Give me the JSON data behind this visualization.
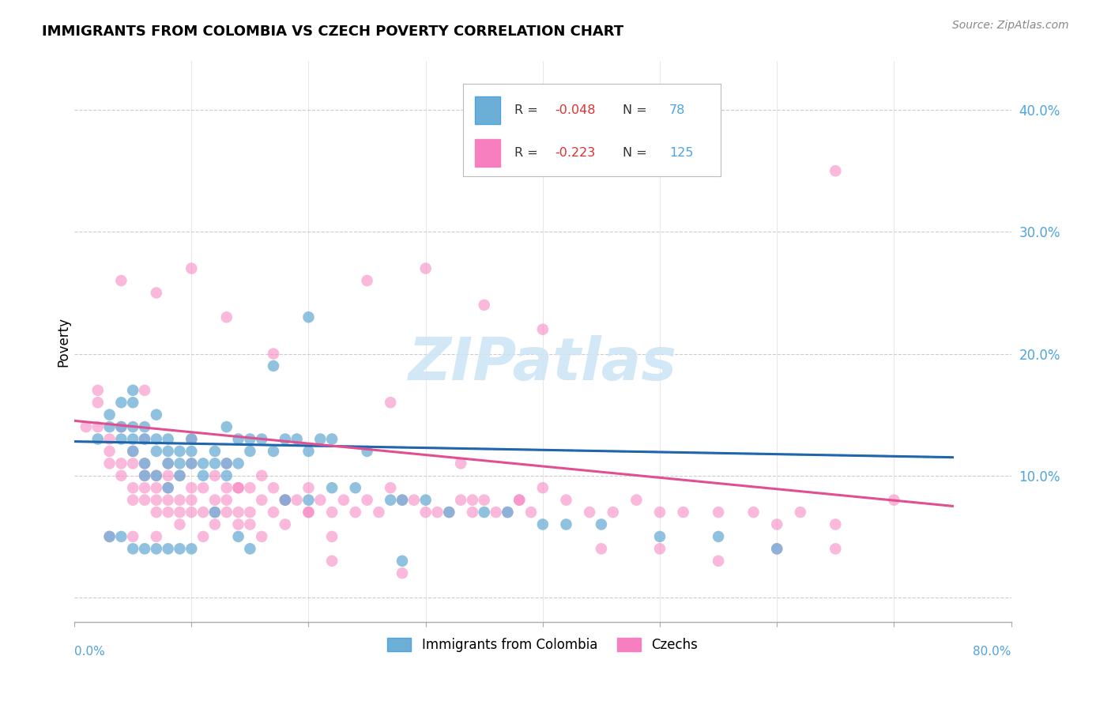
{
  "title": "IMMIGRANTS FROM COLOMBIA VS CZECH POVERTY CORRELATION CHART",
  "source": "Source: ZipAtlas.com",
  "ylabel": "Poverty",
  "yticks": [
    0.0,
    0.1,
    0.2,
    0.3,
    0.4
  ],
  "ytick_labels": [
    "",
    "10.0%",
    "20.0%",
    "30.0%",
    "40.0%"
  ],
  "xlim": [
    0.0,
    0.8
  ],
  "ylim": [
    -0.02,
    0.44
  ],
  "color_blue": "#6baed6",
  "color_pink": "#f77fbf",
  "color_blue_line": "#2166ac",
  "color_pink_line": "#e05090",
  "color_blue_dashed": "#92c5de",
  "watermark": "ZIPatlas",
  "blue_scatter_x": [
    0.02,
    0.03,
    0.03,
    0.04,
    0.04,
    0.04,
    0.05,
    0.05,
    0.05,
    0.05,
    0.06,
    0.06,
    0.06,
    0.06,
    0.07,
    0.07,
    0.07,
    0.07,
    0.08,
    0.08,
    0.08,
    0.08,
    0.09,
    0.09,
    0.09,
    0.1,
    0.1,
    0.1,
    0.11,
    0.11,
    0.12,
    0.12,
    0.13,
    0.13,
    0.13,
    0.14,
    0.14,
    0.15,
    0.15,
    0.16,
    0.17,
    0.17,
    0.18,
    0.19,
    0.2,
    0.2,
    0.21,
    0.22,
    0.25,
    0.27,
    0.28,
    0.3,
    0.32,
    0.35,
    0.37,
    0.4,
    0.42,
    0.45,
    0.5,
    0.55,
    0.6,
    0.03,
    0.04,
    0.05,
    0.06,
    0.07,
    0.08,
    0.09,
    0.1,
    0.12,
    0.14,
    0.18,
    0.22,
    0.28,
    0.15,
    0.2,
    0.24,
    0.05
  ],
  "blue_scatter_y": [
    0.13,
    0.14,
    0.15,
    0.13,
    0.14,
    0.16,
    0.12,
    0.13,
    0.14,
    0.16,
    0.1,
    0.11,
    0.13,
    0.14,
    0.1,
    0.12,
    0.13,
    0.15,
    0.09,
    0.11,
    0.12,
    0.13,
    0.1,
    0.11,
    0.12,
    0.11,
    0.12,
    0.13,
    0.1,
    0.11,
    0.11,
    0.12,
    0.1,
    0.11,
    0.14,
    0.11,
    0.13,
    0.12,
    0.13,
    0.13,
    0.12,
    0.19,
    0.13,
    0.13,
    0.12,
    0.23,
    0.13,
    0.13,
    0.12,
    0.08,
    0.08,
    0.08,
    0.07,
    0.07,
    0.07,
    0.06,
    0.06,
    0.06,
    0.05,
    0.05,
    0.04,
    0.05,
    0.05,
    0.04,
    0.04,
    0.04,
    0.04,
    0.04,
    0.04,
    0.07,
    0.05,
    0.08,
    0.09,
    0.03,
    0.04,
    0.08,
    0.09,
    0.17
  ],
  "pink_scatter_x": [
    0.01,
    0.02,
    0.02,
    0.02,
    0.03,
    0.03,
    0.03,
    0.04,
    0.04,
    0.04,
    0.05,
    0.05,
    0.05,
    0.05,
    0.06,
    0.06,
    0.06,
    0.06,
    0.06,
    0.07,
    0.07,
    0.07,
    0.07,
    0.08,
    0.08,
    0.08,
    0.08,
    0.09,
    0.09,
    0.09,
    0.1,
    0.1,
    0.1,
    0.1,
    0.11,
    0.11,
    0.12,
    0.12,
    0.12,
    0.12,
    0.13,
    0.13,
    0.13,
    0.13,
    0.14,
    0.14,
    0.15,
    0.15,
    0.16,
    0.16,
    0.17,
    0.17,
    0.18,
    0.19,
    0.2,
    0.2,
    0.21,
    0.22,
    0.23,
    0.24,
    0.25,
    0.26,
    0.27,
    0.28,
    0.29,
    0.3,
    0.31,
    0.32,
    0.33,
    0.34,
    0.35,
    0.36,
    0.37,
    0.38,
    0.39,
    0.4,
    0.42,
    0.44,
    0.46,
    0.48,
    0.5,
    0.52,
    0.55,
    0.58,
    0.6,
    0.62,
    0.65,
    0.03,
    0.05,
    0.07,
    0.09,
    0.11,
    0.14,
    0.16,
    0.2,
    0.25,
    0.3,
    0.35,
    0.4,
    0.27,
    0.33,
    0.55,
    0.6,
    0.65,
    0.06,
    0.08,
    0.1,
    0.14,
    0.18,
    0.22,
    0.28,
    0.34,
    0.15,
    0.22,
    0.18,
    0.38,
    0.45,
    0.5,
    0.65,
    0.7,
    0.04,
    0.07,
    0.1,
    0.13,
    0.17
  ],
  "pink_scatter_y": [
    0.14,
    0.14,
    0.16,
    0.17,
    0.11,
    0.12,
    0.13,
    0.1,
    0.11,
    0.14,
    0.08,
    0.09,
    0.11,
    0.12,
    0.08,
    0.09,
    0.1,
    0.11,
    0.13,
    0.07,
    0.08,
    0.09,
    0.1,
    0.07,
    0.08,
    0.09,
    0.11,
    0.07,
    0.08,
    0.1,
    0.07,
    0.08,
    0.09,
    0.11,
    0.07,
    0.09,
    0.06,
    0.07,
    0.08,
    0.1,
    0.07,
    0.08,
    0.09,
    0.11,
    0.07,
    0.09,
    0.07,
    0.09,
    0.08,
    0.1,
    0.07,
    0.09,
    0.08,
    0.08,
    0.07,
    0.09,
    0.08,
    0.07,
    0.08,
    0.07,
    0.08,
    0.07,
    0.09,
    0.08,
    0.08,
    0.07,
    0.07,
    0.07,
    0.08,
    0.07,
    0.08,
    0.07,
    0.07,
    0.08,
    0.07,
    0.09,
    0.08,
    0.07,
    0.07,
    0.08,
    0.07,
    0.07,
    0.07,
    0.07,
    0.06,
    0.07,
    0.06,
    0.05,
    0.05,
    0.05,
    0.06,
    0.05,
    0.06,
    0.05,
    0.07,
    0.26,
    0.27,
    0.24,
    0.22,
    0.16,
    0.11,
    0.03,
    0.04,
    0.35,
    0.17,
    0.1,
    0.13,
    0.09,
    0.06,
    0.03,
    0.02,
    0.08,
    0.06,
    0.05,
    0.08,
    0.08,
    0.04,
    0.04,
    0.04,
    0.08,
    0.26,
    0.25,
    0.27,
    0.23,
    0.2
  ],
  "blue_trend_x": [
    0.0,
    0.75
  ],
  "blue_trend_y_start": 0.128,
  "blue_trend_y_end": 0.115,
  "pink_trend_x": [
    0.0,
    0.75
  ],
  "pink_trend_y_start": 0.145,
  "pink_trend_y_end": 0.075
}
